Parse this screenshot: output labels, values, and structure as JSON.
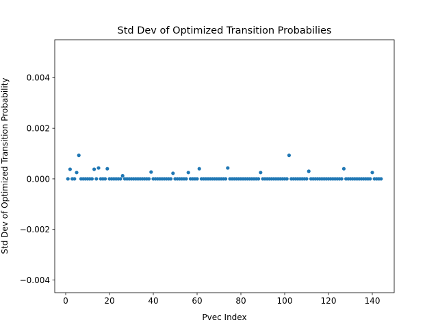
{
  "chart_data": {
    "type": "scatter",
    "title": "Std Dev of Optimized Transition Probabilies",
    "xlabel": "Pvec Index",
    "ylabel": "Std Dev of Optimized Transition Probability",
    "xlim": [
      -5,
      150
    ],
    "ylim": [
      -0.0045,
      0.0055
    ],
    "x_ticks": [
      0,
      20,
      40,
      60,
      80,
      100,
      120,
      140
    ],
    "x_tick_labels": [
      "0",
      "20",
      "40",
      "60",
      "80",
      "100",
      "120",
      "140"
    ],
    "y_ticks": [
      -0.004,
      -0.002,
      0.0,
      0.002,
      0.004
    ],
    "y_tick_labels": [
      "−0.004",
      "−0.002",
      "0.000",
      "0.002",
      "0.004"
    ],
    "grid": false,
    "marker_color": "#1f77b4",
    "x": [
      1,
      2,
      3,
      4,
      5,
      6,
      7,
      8,
      9,
      10,
      11,
      12,
      13,
      14,
      15,
      16,
      17,
      18,
      19,
      20,
      21,
      22,
      23,
      24,
      25,
      26,
      27,
      28,
      29,
      30,
      31,
      32,
      33,
      34,
      35,
      36,
      37,
      38,
      39,
      40,
      41,
      42,
      43,
      44,
      45,
      46,
      47,
      48,
      49,
      50,
      51,
      52,
      53,
      54,
      55,
      56,
      57,
      58,
      59,
      60,
      61,
      62,
      63,
      64,
      65,
      66,
      67,
      68,
      69,
      70,
      71,
      72,
      73,
      74,
      75,
      76,
      77,
      78,
      79,
      80,
      81,
      82,
      83,
      84,
      85,
      86,
      87,
      88,
      89,
      90,
      91,
      92,
      93,
      94,
      95,
      96,
      97,
      98,
      99,
      100,
      101,
      102,
      103,
      104,
      105,
      106,
      107,
      108,
      109,
      110,
      111,
      112,
      113,
      114,
      115,
      116,
      117,
      118,
      119,
      120,
      121,
      122,
      123,
      124,
      125,
      126,
      127,
      128,
      129,
      130,
      131,
      132,
      133,
      134,
      135,
      136,
      137,
      138,
      139,
      140,
      141,
      142,
      143,
      144
    ],
    "y": [
      0,
      0.00038,
      0,
      0,
      0.00025,
      0.00093,
      0,
      0,
      0,
      0,
      0,
      0,
      0.00038,
      0,
      0.00043,
      0,
      0,
      0,
      0.0004,
      0,
      0,
      0,
      0,
      0,
      0,
      0.00012,
      0,
      0,
      0,
      0,
      0,
      0,
      0,
      0,
      0,
      0,
      0,
      0,
      0.00027,
      0,
      0,
      0,
      0,
      0,
      0,
      0,
      0,
      0,
      0.00022,
      0,
      0,
      0,
      0,
      0,
      0,
      0.00025,
      0,
      0,
      0,
      0,
      0.0004,
      0,
      0,
      0,
      0,
      0,
      0,
      0,
      0,
      0,
      0,
      0,
      0,
      0.00043,
      0,
      0,
      0,
      0,
      0,
      0,
      0,
      0,
      0,
      0,
      0,
      0,
      0,
      0,
      0.00025,
      0,
      0,
      0,
      0,
      0,
      0,
      0,
      0,
      0,
      0,
      0,
      0,
      0.00093,
      0,
      0,
      0,
      0,
      0,
      0,
      0,
      0,
      0.0003,
      0,
      0,
      0,
      0,
      0,
      0,
      0,
      0,
      0,
      0,
      0,
      0,
      0,
      0,
      0,
      0.0004,
      0,
      0,
      0,
      0,
      0,
      0,
      0,
      0,
      0,
      0,
      0,
      0,
      0.00025,
      0,
      0,
      0,
      0
    ]
  }
}
